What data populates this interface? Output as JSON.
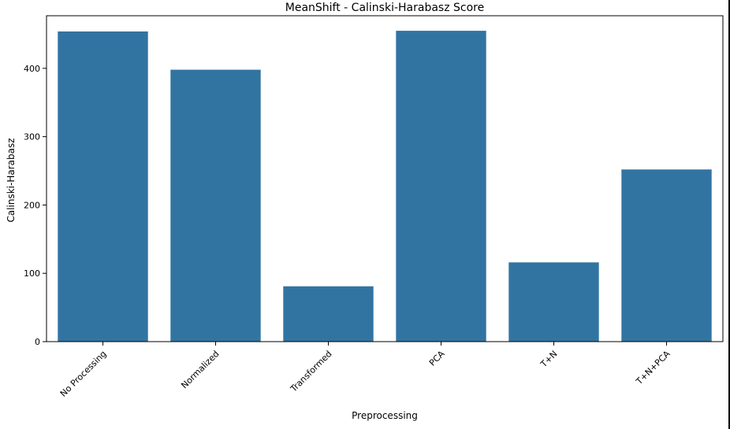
{
  "chart_data": {
    "type": "bar",
    "title": "MeanShift - Calinski-Harabasz Score",
    "xlabel": "Preprocessing",
    "ylabel": "Calinski-Harabasz",
    "categories": [
      "No Processing",
      "Normalized",
      "Transformed",
      "PCA",
      "T+N",
      "T+N+PCA"
    ],
    "values": [
      454,
      398,
      81,
      455,
      116,
      252
    ],
    "ylim": [
      0,
      477
    ],
    "yticks": [
      0,
      100,
      200,
      300,
      400
    ],
    "bar_color": "#3274a1",
    "grid": false
  }
}
